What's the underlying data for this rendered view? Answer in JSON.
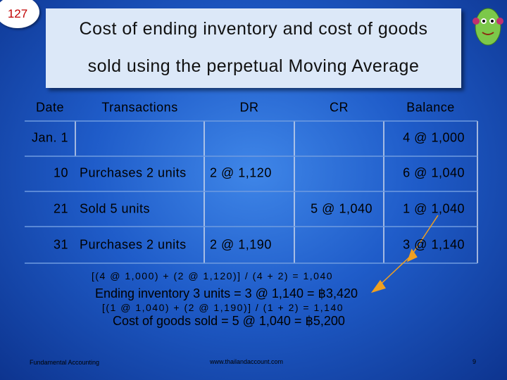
{
  "slide_number": "127",
  "title": {
    "line1": "Cost of ending inventory and cost of goods",
    "line2": "sold using the perpetual Moving Average"
  },
  "table": {
    "header": [
      "Date",
      "Transactions",
      "DR",
      "CR",
      "Balance"
    ],
    "rows": [
      [
        "Jan. 1",
        null,
        null,
        null,
        "4 @ 1,000"
      ],
      [
        "10",
        "Purchases 2 units",
        "2 @ 1,120",
        null,
        "6 @ 1,040"
      ],
      [
        "21",
        "Sold 5 units",
        null,
        "5 @ 1,040",
        "1 @ 1,040"
      ],
      [
        "31",
        "Purchases 2 units",
        "2 @ 1,190",
        null,
        "3 @ 1,140"
      ]
    ]
  },
  "notes": [
    "[(4 @ 1,000) + (2 @ 1,120)] / (4 + 2) = 1,040",
    "Ending inventory 3 units = 3 @ 1,140 = ฿3,420",
    "[(1 @ 1,040) + (2 @ 1,190)] / (1 + 2) = 1,140",
    "Cost of goods sold = 5 @ 1,040 = ฿5,200"
  ],
  "footer": {
    "left": "Fundamental Accounting",
    "center": "www.thailandaccount.com",
    "right": "9"
  }
}
